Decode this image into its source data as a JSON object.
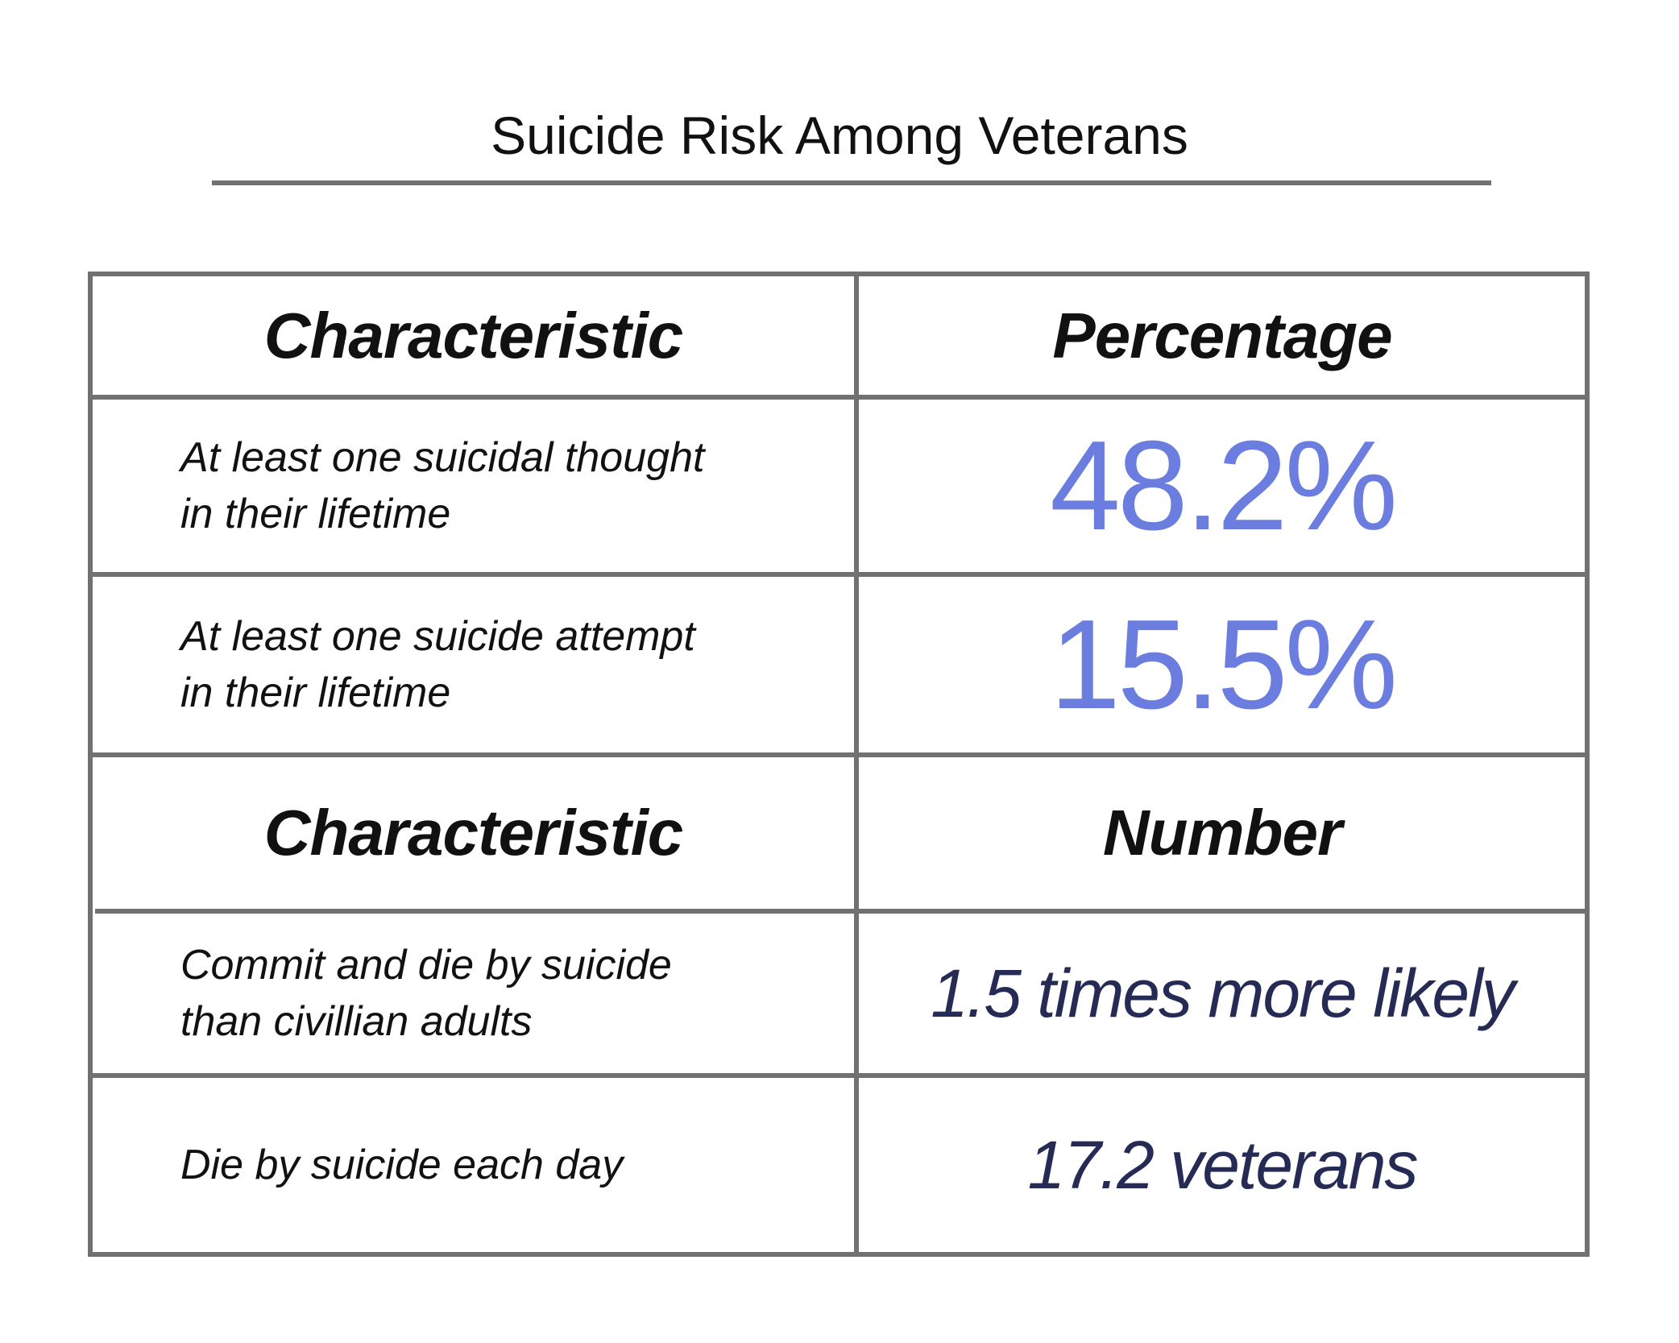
{
  "title": "Suicide Risk Among Veterans",
  "sections": [
    {
      "header": [
        "Characteristic",
        "Percentage"
      ],
      "rows": [
        {
          "label": [
            "At least one suicidal thought",
            "in their lifetime"
          ],
          "value": "48.2%"
        },
        {
          "label": [
            "At least one suicide attempt",
            "in their lifetime"
          ],
          "value": "15.5%"
        }
      ]
    },
    {
      "header": [
        "Characteristic",
        "Number"
      ],
      "rows": [
        {
          "label": [
            "Commit and die by suicide",
            "than civillian adults"
          ],
          "value": "1.5 times more likely"
        },
        {
          "label": [
            "Die by suicide each day"
          ],
          "value": "17.2 veterans"
        }
      ]
    }
  ]
}
